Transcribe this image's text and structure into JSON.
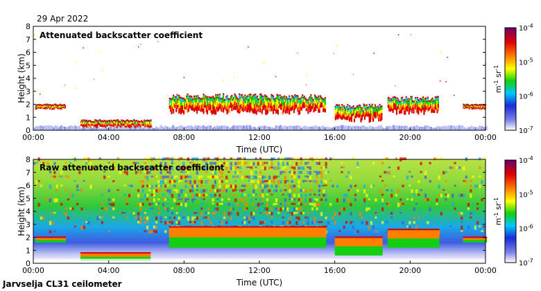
{
  "date_label": "29 Apr 2022",
  "instrument_label": "Jarvselja CL31 ceilometer",
  "chart_data": [
    {
      "type": "heatmap",
      "title": "Attenuated backscatter coefficient",
      "xlabel": "Time (UTC)",
      "ylabel": "Height (km)",
      "x_range_hours": [
        0,
        24
      ],
      "ylim": [
        0,
        8
      ],
      "x_ticks": [
        "00:00",
        "04:00",
        "08:00",
        "12:00",
        "16:00",
        "20:00",
        "00:00"
      ],
      "y_ticks": [
        0,
        1,
        2,
        3,
        4,
        5,
        6,
        7,
        8
      ],
      "colorbar": {
        "scale": "log",
        "range": [
          1e-07,
          0.0001
        ],
        "tick_labels": [
          "10^-7",
          "10^-6",
          "10^-5",
          "10^-4"
        ],
        "unit_label": "m^-1 sr^-1",
        "colors": [
          "#ffffff",
          "#1a2bd6",
          "#00c8ff",
          "#12d010",
          "#ffff00",
          "#ff8000",
          "#e00000",
          "#6a006a"
        ]
      },
      "features": [
        {
          "name": "boundary layer aerosol",
          "t_start_h": 0,
          "t_end_h": 24,
          "height_km": [
            0.0,
            0.4
          ]
        },
        {
          "name": "cloud layer early",
          "t_start_h": 0.1,
          "t_end_h": 1.7,
          "height_km": [
            1.6,
            2.0
          ]
        },
        {
          "name": "low layer",
          "t_start_h": 2.5,
          "t_end_h": 6.2,
          "height_km": [
            0.2,
            0.8
          ]
        },
        {
          "name": "cloud base mid-day",
          "t_start_h": 7.2,
          "t_end_h": 15.5,
          "height_km": [
            1.2,
            2.8
          ]
        },
        {
          "name": "cloud afternoon",
          "t_start_h": 16.0,
          "t_end_h": 18.5,
          "height_km": [
            0.6,
            2.0
          ]
        },
        {
          "name": "cloud evening",
          "t_start_h": 18.8,
          "t_end_h": 21.5,
          "height_km": [
            1.2,
            2.6
          ]
        },
        {
          "name": "cloud late",
          "t_start_h": 22.8,
          "t_end_h": 24,
          "height_km": [
            1.6,
            2.0
          ]
        }
      ]
    },
    {
      "type": "heatmap",
      "title": "Raw attenuated backscatter coefficient",
      "xlabel": "Time (UTC)",
      "ylabel": "Height (km)",
      "x_range_hours": [
        0,
        24
      ],
      "ylim": [
        0,
        8
      ],
      "x_ticks": [
        "00:00",
        "04:00",
        "08:00",
        "12:00",
        "16:00",
        "20:00",
        "00:00"
      ],
      "y_ticks": [
        0,
        1,
        2,
        3,
        4,
        5,
        6,
        7,
        8
      ],
      "colorbar": {
        "scale": "log",
        "range": [
          1e-07,
          0.0001
        ],
        "tick_labels": [
          "10^-7",
          "10^-6",
          "10^-5",
          "10^-4"
        ],
        "unit_label": "m^-1 sr^-1",
        "colors": [
          "#ffffff",
          "#1a2bd6",
          "#00c8ff",
          "#12d010",
          "#ffff00",
          "#ff8000",
          "#e00000",
          "#6a006a"
        ]
      }
    }
  ]
}
